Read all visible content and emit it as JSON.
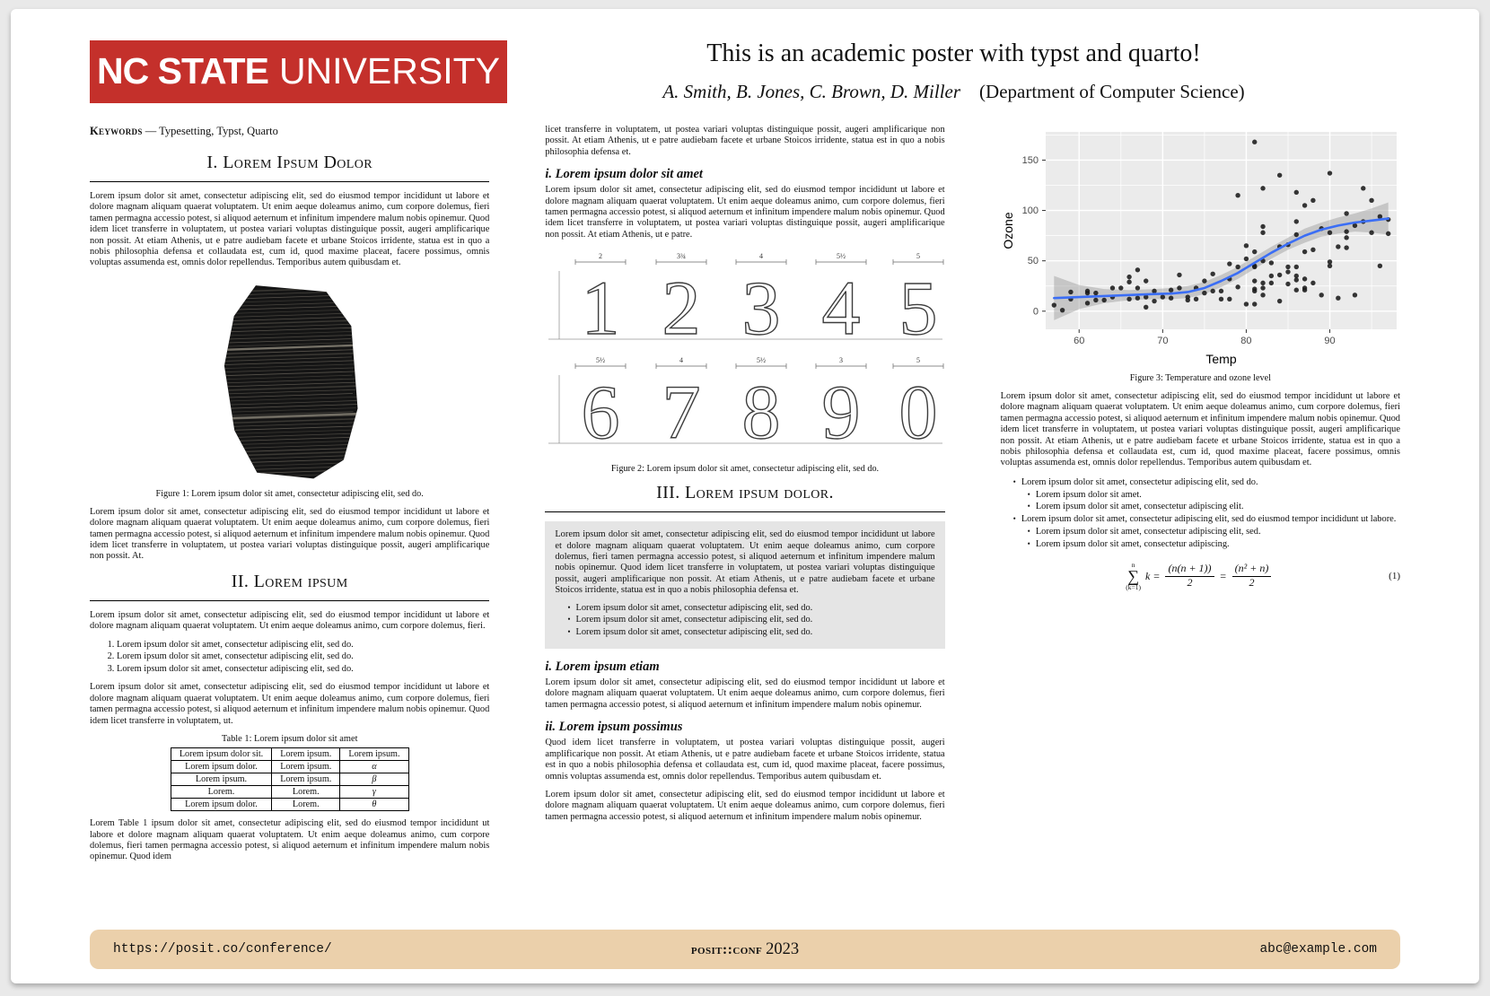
{
  "colors": {
    "brand_red": "#c4302b",
    "footer_tan": "#ebd0ab",
    "graybox": "#e5e5e5"
  },
  "logo": {
    "bold": "NC STATE",
    "light": "UNIVERSITY"
  },
  "header": {
    "title": "This is an academic poster with typst and quarto!",
    "authors": "A. Smith, B. Jones, C. Brown, D. Miller",
    "affiliation": "(Department of Computer Science)"
  },
  "col1": {
    "keywords_label": "Keywords",
    "keywords_text": " — Typesetting, Typst, Quarto",
    "section1": {
      "title": "I. Lorem Ipsum Dolor",
      "para": "Lorem ipsum dolor sit amet, consectetur adipiscing elit, sed do eiusmod tempor incididunt ut labore et dolore magnam aliquam quaerat voluptatem. Ut enim aeque doleamus animo, cum corpore dolemus, fieri tamen permagna accessio potest, si aliquod aeternum et infinitum impendere malum nobis opinemur. Quod idem licet transferre in voluptatem, ut postea variari voluptas distinguique possit, augeri amplificarique non possit. At etiam Athenis, ut e patre audiebam facete et urbane Stoicos irridente, statua est in quo a nobis philosophia defensa et collaudata est, cum id, quod maxime placeat, facere possimus, omnis voluptas assumenda est, omnis dolor repellendus. Temporibus autem quibusdam et."
    },
    "figure1": {
      "caption": "Figure 1:  Lorem ipsum dolor sit amet, consectetur adipiscing elit, sed do."
    },
    "para_after_fig1": "Lorem ipsum dolor sit amet, consectetur adipiscing elit, sed do eiusmod tempor incididunt ut labore et dolore magnam aliquam quaerat voluptatem. Ut enim aeque doleamus animo, cum corpore dolemus, fieri tamen permagna accessio potest, si aliquod aeternum et infinitum impendere malum nobis opinemur. Quod idem licet transferre in voluptatem, ut postea variari voluptas distinguique possit, augeri amplificarique non possit. At.",
    "section2": {
      "title": "II. Lorem ipsum",
      "para1": "Lorem ipsum dolor sit amet, consectetur adipiscing elit, sed do eiusmod tempor incididunt ut labore et dolore magnam aliquam quaerat voluptatem. Ut enim aeque doleamus animo, cum corpore dolemus, fieri.",
      "list": [
        "Lorem ipsum dolor sit amet, consectetur adipiscing elit, sed do.",
        "Lorem ipsum dolor sit amet, consectetur adipiscing elit, sed do.",
        "Lorem ipsum dolor sit amet, consectetur adipiscing elit, sed do."
      ],
      "para2": "Lorem ipsum dolor sit amet, consectetur adipiscing elit, sed do eiusmod tempor incididunt ut labore et dolore magnam aliquam quaerat voluptatem. Ut enim aeque doleamus animo, cum corpore dolemus, fieri tamen permagna accessio potest, si aliquod aeternum et infinitum impendere malum nobis opinemur. Quod idem licet transferre in voluptatem, ut."
    },
    "table": {
      "caption": "Table 1:  Lorem ipsum dolor sit amet",
      "headers": [
        "Lorem ipsum dolor sit.",
        "Lorem ipsum.",
        "Lorem ipsum."
      ],
      "rows": [
        [
          "Lorem ipsum dolor.",
          "Lorem ipsum.",
          "α"
        ],
        [
          "Lorem ipsum.",
          "Lorem ipsum.",
          "β"
        ],
        [
          "Lorem.",
          "Lorem.",
          "γ"
        ],
        [
          "Lorem ipsum dolor.",
          "Lorem.",
          "θ"
        ]
      ]
    },
    "para_after_table": "Lorem Table 1 ipsum dolor sit amet, consectetur adipiscing elit, sed do eiusmod tempor incididunt ut labore et dolore magnam aliquam quaerat voluptatem. Ut enim aeque doleamus animo, cum corpore dolemus, fieri tamen permagna accessio potest, si aliquod aeternum et infinitum impendere malum nobis opinemur. Quod idem"
  },
  "col2": {
    "para_top": "licet transferre in voluptatem, ut postea variari voluptas distinguique possit, augeri amplificarique non possit. At etiam Athenis, ut e patre audiebam facete et urbane Stoicos irridente, statua est in quo a nobis philosophia defensa et.",
    "sub1": {
      "title": "i. Lorem ipsum dolor sit amet",
      "para": "Lorem ipsum dolor sit amet, consectetur adipiscing elit, sed do eiusmod tempor incididunt ut labore et dolore magnam aliquam quaerat voluptatem. Ut enim aeque doleamus animo, cum corpore dolemus, fieri tamen permagna accessio potest, si aliquod aeternum et infinitum impendere malum nobis opinemur. Quod idem licet transferre in voluptatem, ut postea variari voluptas distinguique possit, augeri amplificarique non possit. At etiam Athenis, ut e patre."
    },
    "figure2": {
      "digits1": [
        "1",
        "2",
        "3",
        "4",
        "5"
      ],
      "digits2": [
        "6",
        "7",
        "8",
        "9",
        "0"
      ],
      "dims1": [
        "2",
        "3¾",
        "4",
        "5½",
        "5"
      ],
      "dims2": [
        "5½",
        "4",
        "5½",
        "3",
        "5"
      ],
      "caption": "Figure 2:  Lorem ipsum dolor sit amet, consectetur adipiscing elit, sed do."
    },
    "section3": {
      "title": "III. Lorem ipsum dolor.",
      "box_para": "Lorem ipsum dolor sit amet, consectetur adipiscing elit, sed do eiusmod tempor incididunt ut labore et dolore magnam aliquam quaerat voluptatem. Ut enim aeque doleamus animo, cum corpore dolemus, fieri tamen permagna accessio potest, si aliquod aeternum et infinitum impendere malum nobis opinemur. Quod idem licet transferre in voluptatem, ut postea variari voluptas distinguique possit, augeri amplificarique non possit. At etiam Athenis, ut e patre audiebam facete et urbane Stoicos irridente, statua est in quo a nobis philosophia defensa et.",
      "box_list": [
        "Lorem ipsum dolor sit amet, consectetur adipiscing elit, sed do.",
        "Lorem ipsum dolor sit amet, consectetur adipiscing elit, sed do.",
        "Lorem ipsum dolor sit amet, consectetur adipiscing elit, sed do."
      ]
    },
    "sub2": {
      "title": "i. Lorem ipsum etiam",
      "para": "Lorem ipsum dolor sit amet, consectetur adipiscing elit, sed do eiusmod tempor incididunt ut labore et dolore magnam aliquam quaerat voluptatem. Ut enim aeque doleamus animo, cum corpore dolemus, fieri tamen permagna accessio potest, si aliquod aeternum et infinitum impendere malum nobis opinemur."
    },
    "sub3": {
      "title": "ii. Lorem ipsum possimus",
      "para1": "Quod idem licet transferre in voluptatem, ut postea variari voluptas distinguique possit, augeri amplificarique non possit. At etiam Athenis, ut e patre audiebam facete et urbane Stoicos irridente, statua est in quo a nobis philosophia defensa et collaudata est, cum id, quod maxime placeat, facere possimus, omnis voluptas assumenda est, omnis dolor repellendus. Temporibus autem quibusdam et.",
      "para2": "Lorem ipsum dolor sit amet, consectetur adipiscing elit, sed do eiusmod tempor incididunt ut labore et dolore magnam aliquam quaerat voluptatem. Ut enim aeque doleamus animo, cum corpore dolemus, fieri tamen permagna accessio potest, si aliquod aeternum et infinitum impendere malum nobis opinemur."
    }
  },
  "col3": {
    "figure3_caption": "Figure 3:  Temperature and ozone level",
    "para": "Lorem ipsum dolor sit amet, consectetur adipiscing elit, sed do eiusmod tempor incididunt ut labore et dolore magnam aliquam quaerat voluptatem. Ut enim aeque doleamus animo, cum corpore dolemus, fieri tamen permagna accessio potest, si aliquod aeternum et infinitum impendere malum nobis opinemur. Quod idem licet transferre in voluptatem, ut postea variari voluptas distinguique possit, augeri amplificarique non possit. At etiam Athenis, ut e patre audiebam facete et urbane Stoicos irridente, statua est in quo a nobis philosophia defensa et collaudata est, cum id, quod maxime placeat, facere possimus, omnis voluptas assumenda est, omnis dolor repellendus. Temporibus autem quibusdam et.",
    "bullets": [
      {
        "text": "Lorem ipsum dolor sit amet, consectetur adipiscing elit, sed do.",
        "subs": [
          "Lorem ipsum dolor sit amet.",
          "Lorem ipsum dolor sit amet, consectetur adipiscing elit."
        ]
      },
      {
        "text": "Lorem ipsum dolor sit amet, consectetur adipiscing elit, sed do eiusmod tempor incididunt ut labore.",
        "subs": [
          "Lorem ipsum dolor sit amet, consectetur adipiscing elit, sed.",
          "Lorem ipsum dolor sit amet, consectetur adipiscing."
        ]
      }
    ],
    "equation": {
      "sup": "n",
      "sub": "(k=1)",
      "lhs": "k =",
      "f1_num": "(n(n + 1))",
      "f1_den": "2",
      "eq": "=",
      "f2_num": "(n² + n)",
      "f2_den": "2",
      "tag": "(1)"
    }
  },
  "chart_data": {
    "type": "scatter",
    "title": "",
    "xlabel": "Temp",
    "ylabel": "Ozone",
    "xlim": [
      56,
      98
    ],
    "ylim": [
      -18,
      178
    ],
    "xticks": [
      60,
      70,
      80,
      90
    ],
    "yticks": [
      0,
      50,
      100,
      150
    ],
    "xticks_minor": [
      65,
      75,
      85,
      95
    ],
    "yticks_minor": [
      25,
      75,
      125,
      175
    ],
    "grid": true,
    "legend": "none",
    "panel_color": "#ebebeb",
    "grid_color": "#ffffff",
    "point_color": "#1a1a1a",
    "line_color": "#3b6ef5",
    "ribbon_color": "#9a9a9a",
    "tick_label_color": "#4a4a4a",
    "points": [
      [
        57,
        6
      ],
      [
        58,
        1
      ],
      [
        59,
        19
      ],
      [
        59,
        12
      ],
      [
        61,
        8
      ],
      [
        61,
        20
      ],
      [
        61,
        18
      ],
      [
        62,
        18
      ],
      [
        62,
        11
      ],
      [
        63,
        11
      ],
      [
        64,
        23
      ],
      [
        64,
        14
      ],
      [
        65,
        23
      ],
      [
        66,
        34
      ],
      [
        66,
        29
      ],
      [
        66,
        12
      ],
      [
        67,
        41
      ],
      [
        67,
        23
      ],
      [
        67,
        13
      ],
      [
        68,
        4
      ],
      [
        68,
        30
      ],
      [
        68,
        14
      ],
      [
        69,
        20
      ],
      [
        69,
        10
      ],
      [
        70,
        14
      ],
      [
        71,
        13
      ],
      [
        71,
        21
      ],
      [
        72,
        36
      ],
      [
        72,
        23
      ],
      [
        73,
        11
      ],
      [
        73,
        14
      ],
      [
        74,
        12
      ],
      [
        74,
        23
      ],
      [
        75,
        30
      ],
      [
        75,
        18
      ],
      [
        76,
        37
      ],
      [
        76,
        20
      ],
      [
        77,
        20
      ],
      [
        77,
        12
      ],
      [
        78,
        47
      ],
      [
        78,
        32
      ],
      [
        78,
        12
      ],
      [
        79,
        115
      ],
      [
        79,
        24
      ],
      [
        79,
        44
      ],
      [
        80,
        7
      ],
      [
        80,
        52
      ],
      [
        80,
        65
      ],
      [
        81,
        45
      ],
      [
        81,
        20
      ],
      [
        81,
        168
      ],
      [
        81,
        22
      ],
      [
        81,
        59
      ],
      [
        81,
        44
      ],
      [
        81,
        30
      ],
      [
        81,
        7
      ],
      [
        82,
        122
      ],
      [
        82,
        50
      ],
      [
        82,
        84
      ],
      [
        82,
        23
      ],
      [
        82,
        78
      ],
      [
        82,
        16
      ],
      [
        82,
        28
      ],
      [
        83,
        48
      ],
      [
        83,
        35
      ],
      [
        83,
        28
      ],
      [
        84,
        135
      ],
      [
        84,
        64
      ],
      [
        84,
        10
      ],
      [
        84,
        36
      ],
      [
        85,
        27
      ],
      [
        85,
        39
      ],
      [
        85,
        66
      ],
      [
        85,
        44
      ],
      [
        86,
        35
      ],
      [
        86,
        89
      ],
      [
        86,
        44
      ],
      [
        86,
        31
      ],
      [
        86,
        76
      ],
      [
        86,
        118
      ],
      [
        86,
        21
      ],
      [
        87,
        32
      ],
      [
        87,
        59
      ],
      [
        87,
        21
      ],
      [
        87,
        23
      ],
      [
        87,
        105
      ],
      [
        88,
        61
      ],
      [
        88,
        110
      ],
      [
        88,
        28
      ],
      [
        89,
        16
      ],
      [
        89,
        82
      ],
      [
        90,
        49
      ],
      [
        90,
        45
      ],
      [
        90,
        78
      ],
      [
        90,
        137
      ],
      [
        91,
        64
      ],
      [
        91,
        13
      ],
      [
        92,
        79
      ],
      [
        92,
        63
      ],
      [
        92,
        73
      ],
      [
        92,
        97
      ],
      [
        93,
        85
      ],
      [
        93,
        16
      ],
      [
        94,
        89
      ],
      [
        94,
        122
      ],
      [
        95,
        110
      ],
      [
        95,
        78
      ],
      [
        96,
        94
      ],
      [
        96,
        45
      ],
      [
        97,
        91
      ],
      [
        97,
        77
      ]
    ],
    "smooth": [
      [
        57,
        13
      ],
      [
        60,
        14
      ],
      [
        63,
        15
      ],
      [
        66,
        16
      ],
      [
        69,
        17
      ],
      [
        71,
        17.5
      ],
      [
        73,
        19
      ],
      [
        75,
        23
      ],
      [
        77,
        30
      ],
      [
        79,
        38
      ],
      [
        81,
        48
      ],
      [
        83,
        58
      ],
      [
        85,
        67
      ],
      [
        87,
        75
      ],
      [
        89,
        81
      ],
      [
        91,
        85
      ],
      [
        93,
        88
      ],
      [
        95,
        90
      ],
      [
        97,
        92
      ]
    ],
    "ribbon_upper": [
      [
        57,
        35
      ],
      [
        60,
        26
      ],
      [
        63,
        22
      ],
      [
        66,
        21
      ],
      [
        69,
        22
      ],
      [
        71,
        23
      ],
      [
        73,
        25
      ],
      [
        75,
        29
      ],
      [
        77,
        36
      ],
      [
        79,
        44
      ],
      [
        81,
        54
      ],
      [
        83,
        64
      ],
      [
        85,
        73
      ],
      [
        87,
        82
      ],
      [
        89,
        88
      ],
      [
        91,
        93
      ],
      [
        93,
        97
      ],
      [
        95,
        102
      ],
      [
        97,
        108
      ]
    ],
    "ribbon_lower": [
      [
        57,
        -9
      ],
      [
        60,
        2
      ],
      [
        63,
        8
      ],
      [
        66,
        11
      ],
      [
        69,
        12
      ],
      [
        71,
        12
      ],
      [
        73,
        13
      ],
      [
        75,
        17
      ],
      [
        77,
        24
      ],
      [
        79,
        32
      ],
      [
        81,
        42
      ],
      [
        83,
        52
      ],
      [
        85,
        61
      ],
      [
        87,
        68
      ],
      [
        89,
        74
      ],
      [
        91,
        77
      ],
      [
        93,
        79
      ],
      [
        95,
        78
      ],
      [
        97,
        76
      ]
    ]
  },
  "footer": {
    "url": "https://posit.co/conference/",
    "conf": "posit::conf",
    "year": "2023",
    "email": "abc@example.com"
  }
}
